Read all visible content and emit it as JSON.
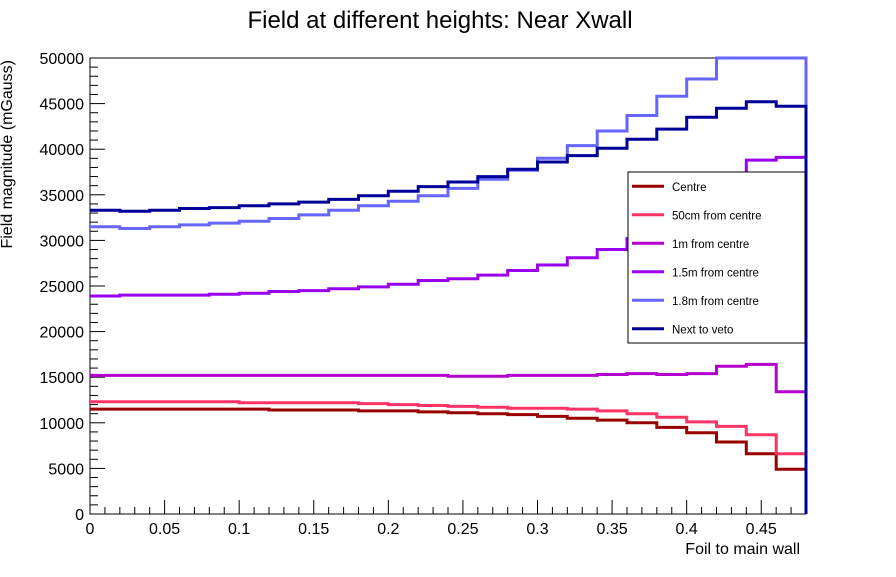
{
  "chart_data": {
    "type": "line",
    "title": "Field at different heights: Near Xwall",
    "xlabel": "Foil to main wall",
    "ylabel": "Field magnitude (mGauss)",
    "xlim": [
      0,
      0.48
    ],
    "ylim": [
      0,
      50000
    ],
    "x_ticks": [
      "0",
      "0.05",
      "0.1",
      "0.15",
      "0.2",
      "0.25",
      "0.3",
      "0.35",
      "0.4",
      "0.45"
    ],
    "y_ticks": [
      "0",
      "5000",
      "10000",
      "15000",
      "20000",
      "25000",
      "30000",
      "35000",
      "40000",
      "45000",
      "50000"
    ],
    "grid": false,
    "legend_position": "right",
    "bin_edges": [
      0,
      0.02,
      0.04,
      0.06,
      0.08,
      0.1,
      0.12,
      0.14,
      0.16,
      0.18,
      0.2,
      0.22,
      0.24,
      0.26,
      0.28,
      0.3,
      0.32,
      0.34,
      0.36,
      0.38,
      0.4,
      0.42,
      0.44,
      0.46,
      0.48
    ],
    "series": [
      {
        "name": "Centre",
        "color": "#990000",
        "values": [
          11500,
          11500,
          11500,
          11500,
          11500,
          11500,
          11400,
          11400,
          11400,
          11300,
          11300,
          11200,
          11100,
          11000,
          10900,
          10700,
          10500,
          10300,
          10000,
          9500,
          8900,
          7900,
          6600,
          4900
        ]
      },
      {
        "name": "50cm from centre",
        "color": "#ff3366",
        "values": [
          12300,
          12300,
          12300,
          12300,
          12300,
          12200,
          12200,
          12200,
          12200,
          12100,
          12000,
          11900,
          11800,
          11700,
          11600,
          11600,
          11500,
          11300,
          11000,
          10600,
          10100,
          9600,
          8700,
          6600
        ]
      },
      {
        "name": "1m from centre",
        "color": "#b300cc",
        "values": [
          15200,
          15200,
          15200,
          15200,
          15200,
          15200,
          15200,
          15200,
          15200,
          15200,
          15200,
          15200,
          15100,
          15100,
          15200,
          15200,
          15200,
          15300,
          15400,
          15300,
          15400,
          16200,
          16400,
          13400
        ]
      },
      {
        "name": "1.5m from centre",
        "color": "#9900ee",
        "values": [
          23900,
          24000,
          24000,
          24000,
          24100,
          24200,
          24400,
          24500,
          24700,
          24900,
          25200,
          25600,
          25800,
          26200,
          26700,
          27300,
          28100,
          29000,
          30200,
          32100,
          34200,
          36500,
          38800,
          39100
        ]
      },
      {
        "name": "1.8m from centre",
        "color": "#6666ff",
        "values": [
          31500,
          31300,
          31500,
          31700,
          31900,
          32100,
          32400,
          32800,
          33300,
          33800,
          34300,
          34900,
          35700,
          36700,
          37700,
          39000,
          40400,
          42000,
          43700,
          45800,
          47700,
          50000,
          50000,
          50000
        ]
      },
      {
        "name": "Next to veto",
        "color": "#000099",
        "values": [
          33300,
          33200,
          33300,
          33500,
          33600,
          33800,
          34000,
          34200,
          34500,
          34900,
          35400,
          35900,
          36400,
          37000,
          37800,
          38600,
          39300,
          40100,
          41100,
          42200,
          43500,
          44500,
          45200,
          44700
        ]
      }
    ]
  }
}
